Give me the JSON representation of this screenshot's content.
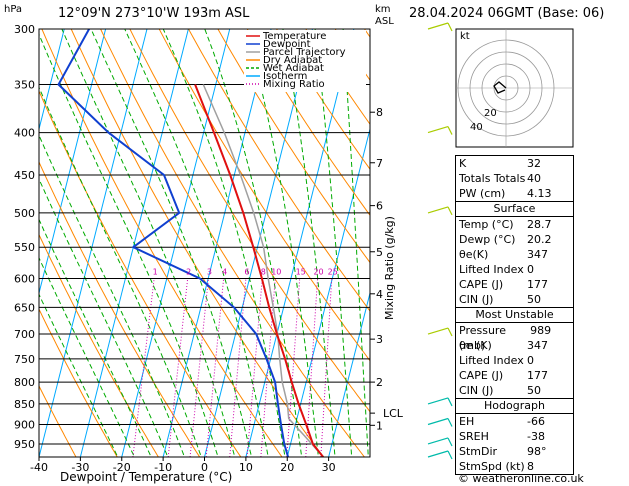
{
  "header": {
    "location": "12°09'N 273°10'W 193m ASL",
    "datetime": "28.04.2024 06GMT (Base: 06)",
    "pressure_unit": "hPa",
    "km_label": "km",
    "asl_label": "ASL"
  },
  "legend": [
    "Temperature",
    "Dewpoint",
    "Parcel Trajectory",
    "Dry Adiabat",
    "Wet Adiabat",
    "Isotherm",
    "Mixing Ratio"
  ],
  "colors": {
    "temperature": "#e01010",
    "dewpoint": "#1040d0",
    "parcel": "#a0a0a0",
    "dry_adiabat": "#ff8800",
    "wet_adiabat": "#00aa00",
    "isotherm": "#00aaff",
    "mixing_ratio": "#cc00aa",
    "wind": "#aacc00",
    "wind_lower": "#00bbaa"
  },
  "chart_data": {
    "type": "skew-t",
    "xlabel": "Dewpoint / Temperature (°C)",
    "ylabel": "Mixing Ratio (g/kg)",
    "x_ticks": [
      -40,
      -30,
      -20,
      -10,
      0,
      10,
      20,
      30
    ],
    "xlim": [
      -40,
      40
    ],
    "pressure_levels": [
      300,
      350,
      400,
      450,
      500,
      550,
      600,
      650,
      700,
      750,
      800,
      850,
      900,
      950
    ],
    "plim": [
      300,
      985
    ],
    "km_ticks": [
      {
        "label": "8",
        "p": 378
      },
      {
        "label": "7",
        "p": 435
      },
      {
        "label": "6",
        "p": 490
      },
      {
        "label": "5",
        "p": 557
      },
      {
        "label": "4",
        "p": 626
      },
      {
        "label": "3",
        "p": 710
      },
      {
        "label": "2",
        "p": 800
      },
      {
        "label": "LCL",
        "p": 872
      },
      {
        "label": "1",
        "p": 902
      }
    ],
    "mixing_ratio_labels": [
      "1",
      "2",
      "3",
      "4",
      "6",
      "8",
      "10",
      "15",
      "20",
      "25"
    ],
    "mixing_ratio_values": [
      1,
      2,
      3,
      4,
      6,
      8,
      10,
      15,
      20,
      25
    ],
    "temperature_profile": [
      {
        "p": 985,
        "t": 28.7
      },
      {
        "p": 950,
        "t": 25.4
      },
      {
        "p": 900,
        "t": 22.6
      },
      {
        "p": 850,
        "t": 19.5
      },
      {
        "p": 800,
        "t": 16.5
      },
      {
        "p": 750,
        "t": 13.5
      },
      {
        "p": 700,
        "t": 10.0
      },
      {
        "p": 650,
        "t": 6.5
      },
      {
        "p": 600,
        "t": 3.0
      },
      {
        "p": 550,
        "t": -1.0
      },
      {
        "p": 500,
        "t": -5.5
      },
      {
        "p": 450,
        "t": -11.0
      },
      {
        "p": 400,
        "t": -17.5
      },
      {
        "p": 350,
        "t": -25.0
      }
    ],
    "dewpoint_profile": [
      {
        "p": 985,
        "t": 20.2
      },
      {
        "p": 950,
        "t": 18.5
      },
      {
        "p": 900,
        "t": 16.5
      },
      {
        "p": 850,
        "t": 14.5
      },
      {
        "p": 800,
        "t": 12.5
      },
      {
        "p": 750,
        "t": 9.0
      },
      {
        "p": 700,
        "t": 5.0
      },
      {
        "p": 650,
        "t": -2.0
      },
      {
        "p": 600,
        "t": -12.0
      },
      {
        "p": 550,
        "t": -30.0
      },
      {
        "p": 500,
        "t": -21.0
      },
      {
        "p": 450,
        "t": -27.0
      },
      {
        "p": 400,
        "t": -43.0
      },
      {
        "p": 350,
        "t": -58.0
      },
      {
        "p": 300,
        "t": -54.0
      }
    ],
    "parcel_profile": [
      {
        "p": 985,
        "t": 28.7
      },
      {
        "p": 930,
        "t": 23.0
      },
      {
        "p": 885,
        "t": 18.0
      },
      {
        "p": 850,
        "t": 16.8
      },
      {
        "p": 800,
        "t": 14.2
      },
      {
        "p": 750,
        "t": 12.2
      },
      {
        "p": 700,
        "t": 10.2
      },
      {
        "p": 650,
        "t": 7.5
      },
      {
        "p": 600,
        "t": 4.5
      },
      {
        "p": 550,
        "t": 1.5
      },
      {
        "p": 500,
        "t": -3.0
      },
      {
        "p": 450,
        "t": -8.5
      },
      {
        "p": 400,
        "t": -15.0
      },
      {
        "p": 350,
        "t": -23.0
      }
    ],
    "hodograph": {
      "label": "kt",
      "ring_labels": [
        "20",
        "40"
      ]
    },
    "wind_barbs_p": [
      300,
      400,
      500,
      700,
      850,
      900,
      950,
      985
    ]
  },
  "indices": {
    "top": [
      {
        "label": "K",
        "value": "32"
      },
      {
        "label": "Totals Totals",
        "value": "40"
      },
      {
        "label": "PW (cm)",
        "value": "4.13"
      }
    ],
    "surface": {
      "title": "Surface",
      "rows": [
        {
          "label": "Temp (°C)",
          "value": "28.7"
        },
        {
          "label": "Dewp (°C)",
          "value": "20.2"
        },
        {
          "label": "θe(K)",
          "value": "347"
        },
        {
          "label": "Lifted Index",
          "value": "0"
        },
        {
          "label": "CAPE (J)",
          "value": "177"
        },
        {
          "label": "CIN (J)",
          "value": "50"
        }
      ]
    },
    "unstable": {
      "title": "Most Unstable",
      "rows": [
        {
          "label": "Pressure (mb)",
          "value": "989"
        },
        {
          "label": "θe (K)",
          "value": "347"
        },
        {
          "label": "Lifted Index",
          "value": "0"
        },
        {
          "label": "CAPE (J)",
          "value": "177"
        },
        {
          "label": "CIN (J)",
          "value": "50"
        }
      ]
    },
    "hodograph": {
      "title": "Hodograph",
      "rows": [
        {
          "label": "EH",
          "value": "-66"
        },
        {
          "label": "SREH",
          "value": "-38"
        },
        {
          "label": "StmDir",
          "value": "98°"
        },
        {
          "label": "StmSpd (kt)",
          "value": "8"
        }
      ]
    }
  },
  "credit": "© weatheronline.co.uk"
}
